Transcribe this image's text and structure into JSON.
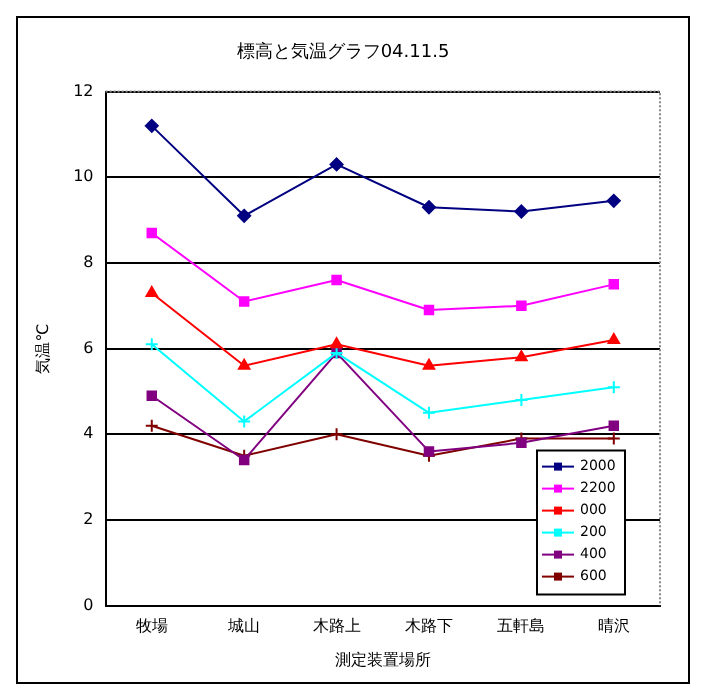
{
  "chart_data": {
    "type": "line",
    "title": "標高と気温グラフ04.11.5",
    "xlabel": "測定装置場所",
    "ylabel": "気温℃",
    "categories": [
      "牧場",
      "城山",
      "木路上",
      "木路下",
      "五軒島",
      "晴沢"
    ],
    "series": [
      {
        "name": "2000",
        "color": "#000080",
        "marker": "diamond",
        "values": [
          11.2,
          9.1,
          10.3,
          9.3,
          9.2,
          9.45
        ]
      },
      {
        "name": "2200",
        "color": "#ff00ff",
        "marker": "square",
        "values": [
          8.7,
          7.1,
          7.6,
          6.9,
          7.0,
          7.5
        ]
      },
      {
        "name": "000",
        "color": "#ff0000",
        "marker": "triangle",
        "values": [
          7.3,
          5.6,
          6.1,
          5.6,
          5.8,
          6.2
        ]
      },
      {
        "name": "200",
        "color": "#00ffff",
        "marker": "cross",
        "values": [
          6.1,
          4.3,
          5.9,
          4.5,
          4.8,
          5.1
        ]
      },
      {
        "name": "400",
        "color": "#800080",
        "marker": "square",
        "values": [
          4.9,
          3.4,
          5.9,
          3.6,
          3.8,
          4.2
        ]
      },
      {
        "name": "600",
        "color": "#800000",
        "marker": "cross",
        "values": [
          4.2,
          3.5,
          4.0,
          3.5,
          3.9,
          3.9
        ]
      }
    ],
    "ylim": [
      0,
      12
    ],
    "yticks": [
      0,
      2,
      4,
      6,
      8,
      10,
      12
    ],
    "grid": "y",
    "legend": "bottom right",
    "line_style": "solid"
  }
}
